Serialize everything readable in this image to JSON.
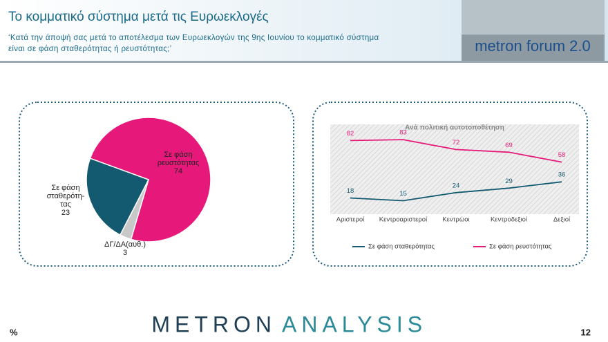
{
  "header": {
    "title": "Το κομματικό σύστημα μετά τις Ευρωεκλογές",
    "subtitle_lines": [
      "‘Κατά την άποψή σας μετά το αποτέλεσμα των Ευρωεκλογών της 9ης Ιουνίου το κομματικό σύστημα",
      "είναι σε φάση σταθερότητας ή ρευστότητας;’"
    ],
    "logo": "metron forum 2.0"
  },
  "chart_data": [
    {
      "type": "pie",
      "categories": [
        "Σε φάση ρευστότητας",
        "ΔΓ/ΔΑ(αυθ.)",
        "Σε φάση σταθερότη-τας"
      ],
      "values": [
        74,
        3,
        23
      ],
      "colors": [
        "#e6197a",
        "#c8c8c8",
        "#135a70"
      ]
    },
    {
      "type": "line",
      "title": "Ανά πολιτική αυτοτοποθέτηση",
      "categories": [
        "Αριστεροί",
        "Κεντροαριστεροί",
        "Κεντρώοι",
        "Κεντροδεξιοί",
        "Δεξιοί"
      ],
      "ylim": [
        0,
        100
      ],
      "series": [
        {
          "name": "Σε φάση σταθερότητας",
          "color": "#135a70",
          "values": [
            18,
            15,
            24,
            29,
            36
          ]
        },
        {
          "name": "Σε φάση ρευστότητας",
          "color": "#e6197a",
          "values": [
            82,
            83,
            72,
            69,
            58
          ]
        }
      ]
    }
  ],
  "footer": {
    "brand_left": "METRON",
    "brand_right": "ANALYSIS",
    "unit": "%",
    "page": "12"
  }
}
